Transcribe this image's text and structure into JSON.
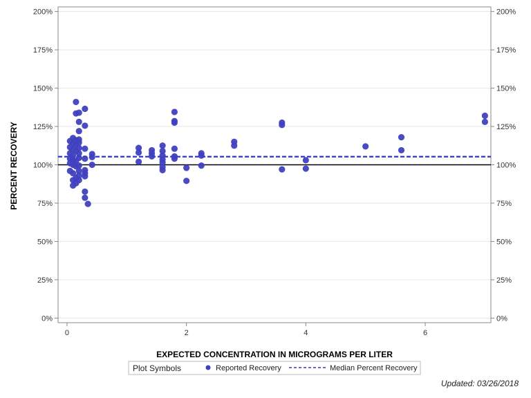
{
  "chart_data": {
    "type": "scatter",
    "xlabel": "EXPECTED CONCENTRATION IN MICROGRAMS PER LITER",
    "ylabel": "PERCENT RECOVERY",
    "xlim": [
      -0.15,
      7.1
    ],
    "ylim": [
      -3,
      203
    ],
    "xticks": [
      {
        "value": 0,
        "label": "0"
      },
      {
        "value": 2,
        "label": "2"
      },
      {
        "value": 4,
        "label": "4"
      },
      {
        "value": 6,
        "label": "6"
      }
    ],
    "yticks": [
      {
        "value": 0,
        "label": "0%"
      },
      {
        "value": 25,
        "label": "25%"
      },
      {
        "value": 50,
        "label": "50%"
      },
      {
        "value": 75,
        "label": "75%"
      },
      {
        "value": 100,
        "label": "100%"
      },
      {
        "value": 125,
        "label": "125%"
      },
      {
        "value": 150,
        "label": "150%"
      },
      {
        "value": 175,
        "label": "175%"
      },
      {
        "value": 200,
        "label": "200%"
      }
    ],
    "reference_line": {
      "name": "100% recovery",
      "y": 100,
      "color": "#000000"
    },
    "median_line": {
      "name": "Median Percent Recovery",
      "y": 105.3,
      "color": "#3535c8"
    },
    "series": [
      {
        "name": "Reported Recovery",
        "color": "#4040c0",
        "points": [
          [
            0.05,
            115.5
          ],
          [
            0.05,
            111.5
          ],
          [
            0.05,
            107.5
          ],
          [
            0.05,
            104
          ],
          [
            0.05,
            101
          ],
          [
            0.05,
            96
          ],
          [
            0.1,
            117.5
          ],
          [
            0.1,
            114
          ],
          [
            0.1,
            110
          ],
          [
            0.1,
            106
          ],
          [
            0.1,
            103
          ],
          [
            0.1,
            100
          ],
          [
            0.1,
            94.5
          ],
          [
            0.1,
            90
          ],
          [
            0.1,
            86.5
          ],
          [
            0.15,
            141
          ],
          [
            0.15,
            133.5
          ],
          [
            0.15,
            116
          ],
          [
            0.15,
            113
          ],
          [
            0.15,
            109
          ],
          [
            0.15,
            102.5
          ],
          [
            0.15,
            99
          ],
          [
            0.15,
            91.5
          ],
          [
            0.15,
            88
          ],
          [
            0.2,
            134
          ],
          [
            0.2,
            128
          ],
          [
            0.2,
            122
          ],
          [
            0.2,
            116.5
          ],
          [
            0.2,
            114.5
          ],
          [
            0.2,
            111
          ],
          [
            0.2,
            107.5
          ],
          [
            0.2,
            104.5
          ],
          [
            0.2,
            99.5
          ],
          [
            0.2,
            96
          ],
          [
            0.2,
            93
          ],
          [
            0.2,
            90
          ],
          [
            0.3,
            136.5
          ],
          [
            0.3,
            125.5
          ],
          [
            0.3,
            110.5
          ],
          [
            0.3,
            104
          ],
          [
            0.3,
            96.5
          ],
          [
            0.3,
            94.5
          ],
          [
            0.3,
            92.5
          ],
          [
            0.3,
            82.5
          ],
          [
            0.3,
            78.5
          ],
          [
            0.35,
            74.5
          ],
          [
            0.42,
            107
          ],
          [
            0.42,
            105
          ],
          [
            0.42,
            100
          ],
          [
            1.2,
            111
          ],
          [
            1.2,
            108
          ],
          [
            1.2,
            102
          ],
          [
            1.42,
            109.5
          ],
          [
            1.42,
            107.5
          ],
          [
            1.42,
            105.5
          ],
          [
            1.6,
            112.5
          ],
          [
            1.6,
            109
          ],
          [
            1.6,
            106
          ],
          [
            1.6,
            103.5
          ],
          [
            1.6,
            101.5
          ],
          [
            1.6,
            98.5
          ],
          [
            1.6,
            96.5
          ],
          [
            1.8,
            134.5
          ],
          [
            1.8,
            128.5
          ],
          [
            1.8,
            127.5
          ],
          [
            1.8,
            110.5
          ],
          [
            1.8,
            105.5
          ],
          [
            1.8,
            104
          ],
          [
            2.0,
            98
          ],
          [
            2.0,
            89.5
          ],
          [
            2.25,
            107.5
          ],
          [
            2.25,
            106
          ],
          [
            2.25,
            99.5
          ],
          [
            2.8,
            115
          ],
          [
            2.8,
            112.5
          ],
          [
            3.6,
            127.5
          ],
          [
            3.6,
            126
          ],
          [
            3.6,
            97
          ],
          [
            4.0,
            103
          ],
          [
            4.0,
            97.5
          ],
          [
            5.0,
            112
          ],
          [
            5.6,
            118
          ],
          [
            5.6,
            109.5
          ],
          [
            7.0,
            132
          ],
          [
            7.0,
            128
          ]
        ]
      }
    ],
    "legend": {
      "title": "Plot Symbols",
      "position": "bottom-center",
      "items": [
        {
          "label": "Reported Recovery",
          "kind": "marker"
        },
        {
          "label": "Median Percent Recovery",
          "kind": "dashed-line"
        }
      ]
    }
  },
  "footer": {
    "updated": "Updated: 03/26/2018"
  }
}
